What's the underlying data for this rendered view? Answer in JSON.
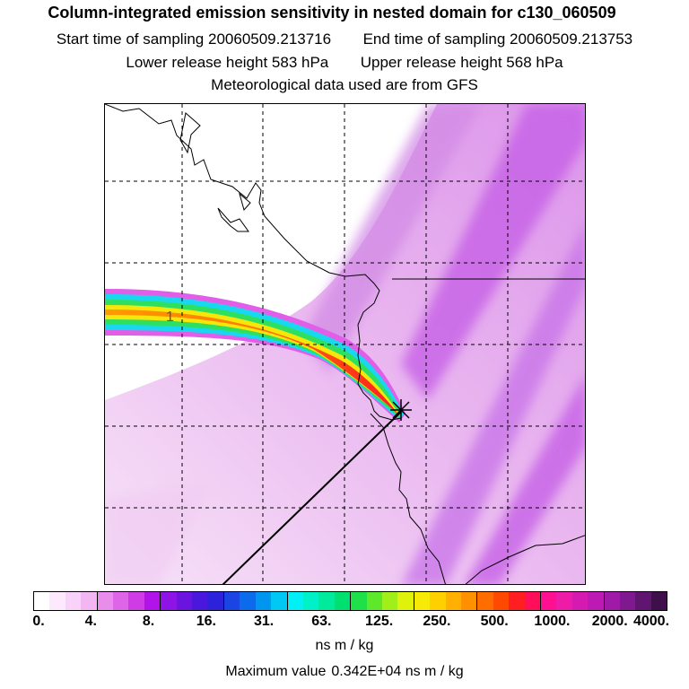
{
  "header": {
    "title": "Column-integrated emission sensitivity in nested domain for c130_060509",
    "start_label": "Start time of sampling",
    "start_value": "20060509.213716",
    "end_label": "End time of sampling",
    "end_value": "20060509.213753",
    "lower_label": "Lower release height",
    "lower_value": "583 hPa",
    "upper_label": "Upper release height",
    "upper_value": "568 hPa",
    "met_line": "Meteorological data used are from GFS"
  },
  "map": {
    "plume_label": "1",
    "release_marker": "star-cross",
    "colors": {
      "background_low": "#f3d9f5",
      "mid": "#d98be6",
      "high": "#bb3de8",
      "grid": "#000000",
      "coast": "#000000"
    }
  },
  "colorbar": {
    "colors": [
      "#ffffff",
      "#fde9fd",
      "#f8d2f8",
      "#f2b6f3",
      "#e98ded",
      "#de64e8",
      "#cf3ce6",
      "#b213e8",
      "#8e14e5",
      "#6b14e0",
      "#4a18dd",
      "#2c22dc",
      "#1a45e3",
      "#0b6bea",
      "#0096f0",
      "#00c8f4",
      "#00f0f5",
      "#00f0c8",
      "#00ea9c",
      "#00e070",
      "#1fe048",
      "#5ee82a",
      "#a0ef1a",
      "#dff20c",
      "#f7ea06",
      "#ffd000",
      "#ffb000",
      "#ff9000",
      "#ff6d00",
      "#ff4800",
      "#ff1f20",
      "#ff0f5a",
      "#ff1090",
      "#ee1aa8",
      "#d51ab1",
      "#bd1ab5",
      "#a01aa8",
      "#80188f",
      "#601570",
      "#3f0f4c"
    ],
    "labels": [
      "0.",
      "4.",
      "8.",
      "16.",
      "31.",
      "63.",
      "125.",
      "250.",
      "500.",
      "1000.",
      "2000.",
      "4000."
    ],
    "units": "ns m / kg",
    "max_label": "Maximum value",
    "max_value": "0.342E+04 ns m / kg"
  }
}
